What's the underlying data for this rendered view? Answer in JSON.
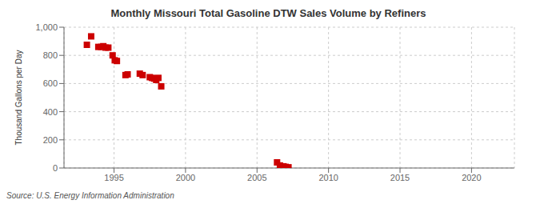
{
  "chart_data": {
    "type": "scatter",
    "title": "Monthly Missouri Total Gasoline DTW Sales Volume by Refiners",
    "ylabel": "Thousand Gallons per Day",
    "annotations": [
      "Source: U.S. Energy Information Administration"
    ],
    "color": "#cc0000",
    "marker": "square",
    "grid": true,
    "xlim": [
      1991.5,
      2023
    ],
    "xticks": [
      1995,
      2000,
      2005,
      2010,
      2015,
      2020
    ],
    "ylim": [
      0,
      1000
    ],
    "yticks": [
      0,
      200,
      400,
      600,
      800,
      {
        "value": 1000,
        "label": "1,000"
      }
    ],
    "x": [
      1993.1,
      1993.4,
      1993.9,
      1994.1,
      1994.25,
      1994.4,
      1994.6,
      1994.9,
      1995.05,
      1995.2,
      1995.8,
      1995.95,
      1996.8,
      1997.0,
      1997.5,
      1997.65,
      1997.8,
      1997.95,
      1998.1,
      1998.3,
      2006.4,
      2006.6,
      2006.85,
      2007.0,
      2007.2
    ],
    "y": [
      875,
      935,
      860,
      860,
      865,
      855,
      855,
      800,
      765,
      760,
      660,
      665,
      670,
      660,
      645,
      640,
      635,
      625,
      640,
      580,
      40,
      18,
      12,
      8,
      5
    ]
  }
}
